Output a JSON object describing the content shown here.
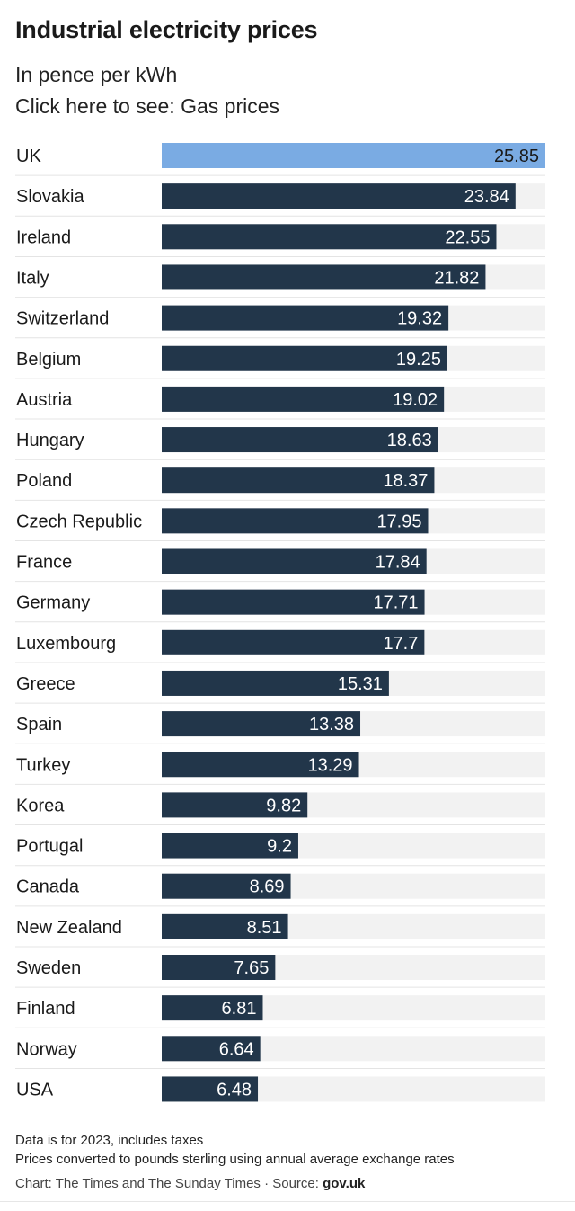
{
  "header": {
    "title": "Industrial electricity prices",
    "subtitle": "In pence per kWh",
    "toggle_prefix": "Click here to see: ",
    "toggle_link": "Gas prices"
  },
  "chart_data": {
    "type": "bar",
    "orientation": "horizontal",
    "title": "Industrial electricity prices",
    "subtitle": "In pence per kWh",
    "categories": [
      "UK",
      "Slovakia",
      "Ireland",
      "Italy",
      "Switzerland",
      "Belgium",
      "Austria",
      "Hungary",
      "Poland",
      "Czech Republic",
      "France",
      "Germany",
      "Luxembourg",
      "Greece",
      "Spain",
      "Turkey",
      "Korea",
      "Portugal",
      "Canada",
      "New Zealand",
      "Sweden",
      "Finland",
      "Norway",
      "USA"
    ],
    "values": [
      25.85,
      23.84,
      22.55,
      21.82,
      19.32,
      19.25,
      19.02,
      18.63,
      18.37,
      17.95,
      17.84,
      17.71,
      17.7,
      15.31,
      13.38,
      13.29,
      9.82,
      9.2,
      8.69,
      8.51,
      7.65,
      6.81,
      6.64,
      6.48
    ],
    "value_labels": [
      "25.85",
      "23.84",
      "22.55",
      "21.82",
      "19.32",
      "19.25",
      "19.02",
      "18.63",
      "18.37",
      "17.95",
      "17.84",
      "17.71",
      "17.7",
      "15.31",
      "13.38",
      "13.29",
      "9.82",
      "9.2",
      "8.69",
      "8.51",
      "7.65",
      "6.81",
      "6.64",
      "6.48"
    ],
    "highlight": "UK",
    "xlim": [
      0,
      25.85
    ],
    "colors": {
      "bar": "#22364a",
      "highlight": "#7aabe3",
      "track": "#f2f2f2",
      "divider": "#e4e4e4",
      "label_on_bar": "#ffffff",
      "label_on_highlight": "#1a1a1a"
    }
  },
  "footer": {
    "note1": "Data is for 2023, includes taxes",
    "note2": "Prices converted to pounds sterling using annual average exchange rates",
    "credit": "Chart: The Times and The Sunday Times · Source: ",
    "source": "gov.uk"
  }
}
